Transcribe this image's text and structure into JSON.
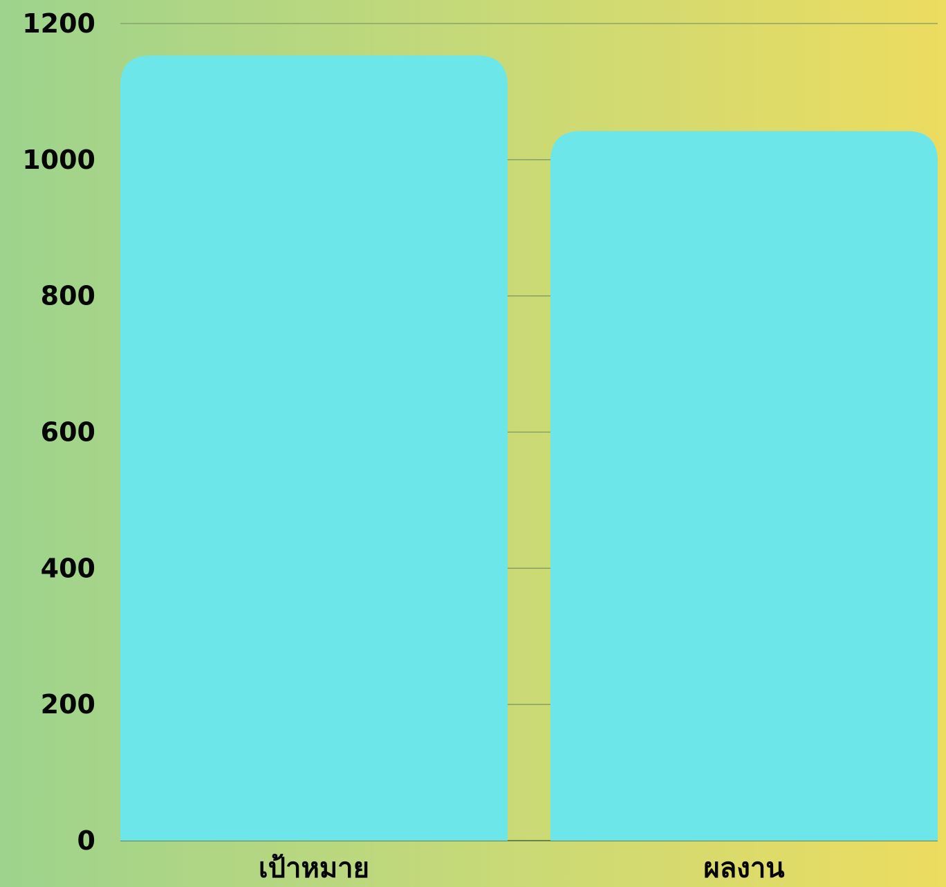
{
  "chart_data": {
    "type": "bar",
    "categories": [
      "เป้าหมาย",
      "ผลงาน"
    ],
    "values": [
      1153,
      1042
    ],
    "title": "",
    "xlabel": "",
    "ylabel": "",
    "ylim": [
      0,
      1200
    ],
    "yticks": [
      "0",
      "200",
      "400",
      "600",
      "800",
      "1000",
      "1200"
    ],
    "grid": true,
    "legend": "none",
    "colors": {
      "bar": "#6ce6e8",
      "grid": "#7f9a63",
      "text": "#050505",
      "background_left": "#9dd38d",
      "background_right": "#ecdc60"
    }
  }
}
